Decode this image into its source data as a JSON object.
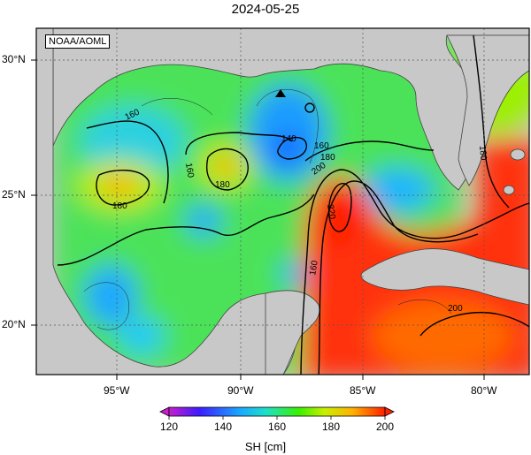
{
  "title": "2024-05-25",
  "credit": "NOAA/AOML",
  "lon_ticks": [
    "95°W",
    "90°W",
    "85°W",
    "80°W"
  ],
  "lat_ticks": [
    "30°N",
    "25°N",
    "20°N"
  ],
  "contour_labels": [
    {
      "text": "160"
    },
    {
      "text": "160"
    },
    {
      "text": "180"
    },
    {
      "text": "180"
    },
    {
      "text": "140"
    },
    {
      "text": "160"
    },
    {
      "text": "180"
    },
    {
      "text": "200"
    },
    {
      "text": "220"
    },
    {
      "text": "160"
    },
    {
      "text": "180"
    },
    {
      "text": "200"
    }
  ],
  "colorbar": {
    "ticks": [
      "120",
      "140",
      "160",
      "180",
      "200"
    ],
    "units": "SH [cm]",
    "min": 120,
    "max": 200,
    "colors": [
      "#c81ecc",
      "#3c1cff",
      "#1aa8ff",
      "#1ee0c8",
      "#38f000",
      "#c8f000",
      "#ffb000",
      "#ff2000"
    ]
  },
  "marker": {
    "shape": "triangle",
    "color": "#000000"
  }
}
